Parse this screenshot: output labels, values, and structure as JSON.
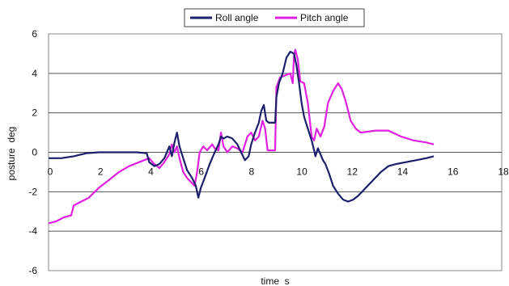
{
  "chart_data": {
    "type": "line",
    "xlabel": "time  s",
    "ylabel": "posture  deg",
    "xlim": [
      0,
      18
    ],
    "ylim": [
      -6,
      6
    ],
    "x_ticks": [
      "0",
      "2",
      "4",
      "6",
      "8",
      "10",
      "12",
      "14",
      "16",
      "18"
    ],
    "y_ticks": [
      "6",
      "4",
      "2",
      "0",
      "-2",
      "-4",
      "-6"
    ],
    "grid": "horizontal",
    "legend_position": "top",
    "colors": {
      "roll": "#1c1f6b",
      "pitch": "#e020e0"
    },
    "series": [
      {
        "name": "Roll angle",
        "points": [
          [
            0,
            -0.3
          ],
          [
            0.5,
            -0.3
          ],
          [
            1,
            -0.2
          ],
          [
            1.5,
            -0.05
          ],
          [
            2,
            0
          ],
          [
            2.5,
            0
          ],
          [
            3,
            0
          ],
          [
            3.5,
            0
          ],
          [
            3.9,
            -0.05
          ],
          [
            4.0,
            -0.5
          ],
          [
            4.2,
            -0.7
          ],
          [
            4.4,
            -0.6
          ],
          [
            4.6,
            -0.3
          ],
          [
            4.8,
            0.3
          ],
          [
            4.9,
            -0.2
          ],
          [
            5.0,
            0.5
          ],
          [
            5.1,
            1.0
          ],
          [
            5.2,
            0.3
          ],
          [
            5.35,
            -0.3
          ],
          [
            5.5,
            -0.9
          ],
          [
            5.7,
            -1.3
          ],
          [
            5.85,
            -1.7
          ],
          [
            5.95,
            -2.3
          ],
          [
            6.05,
            -1.8
          ],
          [
            6.2,
            -1.3
          ],
          [
            6.4,
            -0.6
          ],
          [
            6.6,
            0.0
          ],
          [
            6.75,
            0.4
          ],
          [
            6.85,
            0.8
          ],
          [
            6.95,
            0.7
          ],
          [
            7.1,
            0.8
          ],
          [
            7.3,
            0.7
          ],
          [
            7.5,
            0.4
          ],
          [
            7.65,
            0.0
          ],
          [
            7.8,
            -0.4
          ],
          [
            7.95,
            -0.2
          ],
          [
            8.05,
            0.4
          ],
          [
            8.2,
            1.0
          ],
          [
            8.35,
            1.5
          ],
          [
            8.45,
            2.1
          ],
          [
            8.55,
            2.4
          ],
          [
            8.65,
            1.6
          ],
          [
            8.75,
            1.5
          ],
          [
            9.0,
            1.5
          ],
          [
            9.05,
            2.8
          ],
          [
            9.15,
            3.5
          ],
          [
            9.3,
            4.0
          ],
          [
            9.45,
            4.8
          ],
          [
            9.6,
            5.1
          ],
          [
            9.75,
            5.0
          ],
          [
            9.85,
            4.4
          ],
          [
            9.95,
            3.5
          ],
          [
            10.05,
            2.5
          ],
          [
            10.15,
            1.8
          ],
          [
            10.3,
            1.2
          ],
          [
            10.45,
            0.6
          ],
          [
            10.55,
            0.1
          ],
          [
            10.6,
            -0.2
          ],
          [
            10.7,
            0.2
          ],
          [
            10.8,
            -0.1
          ],
          [
            10.9,
            -0.4
          ],
          [
            11.0,
            -0.6
          ],
          [
            11.15,
            -1.1
          ],
          [
            11.3,
            -1.7
          ],
          [
            11.5,
            -2.1
          ],
          [
            11.7,
            -2.4
          ],
          [
            11.9,
            -2.5
          ],
          [
            12.1,
            -2.4
          ],
          [
            12.3,
            -2.2
          ],
          [
            12.6,
            -1.8
          ],
          [
            12.9,
            -1.4
          ],
          [
            13.2,
            -1.0
          ],
          [
            13.5,
            -0.7
          ],
          [
            13.8,
            -0.6
          ],
          [
            14.2,
            -0.5
          ],
          [
            14.6,
            -0.4
          ],
          [
            15.0,
            -0.3
          ],
          [
            15.3,
            -0.2
          ]
        ]
      },
      {
        "name": "Pitch angle",
        "points": [
          [
            0,
            -3.6
          ],
          [
            0.3,
            -3.5
          ],
          [
            0.6,
            -3.3
          ],
          [
            0.9,
            -3.2
          ],
          [
            1.0,
            -2.7
          ],
          [
            1.3,
            -2.5
          ],
          [
            1.6,
            -2.3
          ],
          [
            2.0,
            -1.8
          ],
          [
            2.4,
            -1.4
          ],
          [
            2.8,
            -1.0
          ],
          [
            3.2,
            -0.7
          ],
          [
            3.6,
            -0.5
          ],
          [
            4.0,
            -0.3
          ],
          [
            4.2,
            -0.6
          ],
          [
            4.4,
            -0.8
          ],
          [
            4.6,
            -0.5
          ],
          [
            4.8,
            -0.1
          ],
          [
            4.9,
            0.4
          ],
          [
            5.0,
            0.0
          ],
          [
            5.1,
            0.3
          ],
          [
            5.2,
            -0.3
          ],
          [
            5.35,
            -1.0
          ],
          [
            5.5,
            -1.3
          ],
          [
            5.65,
            -1.5
          ],
          [
            5.8,
            -1.7
          ],
          [
            5.9,
            -1.0
          ],
          [
            6.0,
            0.0
          ],
          [
            6.15,
            0.3
          ],
          [
            6.3,
            0.1
          ],
          [
            6.5,
            0.4
          ],
          [
            6.6,
            0.2
          ],
          [
            6.75,
            0.1
          ],
          [
            6.85,
            1.0
          ],
          [
            6.95,
            0.3
          ],
          [
            7.1,
            0.0
          ],
          [
            7.3,
            0.3
          ],
          [
            7.5,
            0.2
          ],
          [
            7.7,
            0.0
          ],
          [
            7.9,
            0.8
          ],
          [
            8.05,
            1.0
          ],
          [
            8.2,
            0.6
          ],
          [
            8.35,
            0.8
          ],
          [
            8.5,
            1.6
          ],
          [
            8.6,
            1.2
          ],
          [
            8.7,
            0.1
          ],
          [
            9.0,
            0.1
          ],
          [
            9.05,
            3.3
          ],
          [
            9.2,
            3.8
          ],
          [
            9.4,
            3.9
          ],
          [
            9.6,
            4.0
          ],
          [
            9.7,
            3.5
          ],
          [
            9.75,
            4.9
          ],
          [
            9.8,
            5.2
          ],
          [
            9.9,
            4.7
          ],
          [
            10.0,
            3.6
          ],
          [
            10.15,
            3.5
          ],
          [
            10.3,
            2.5
          ],
          [
            10.45,
            0.8
          ],
          [
            10.55,
            0.6
          ],
          [
            10.65,
            1.2
          ],
          [
            10.8,
            0.8
          ],
          [
            10.95,
            1.3
          ],
          [
            11.1,
            2.5
          ],
          [
            11.3,
            3.1
          ],
          [
            11.5,
            3.5
          ],
          [
            11.65,
            3.2
          ],
          [
            11.8,
            2.6
          ],
          [
            12.0,
            1.6
          ],
          [
            12.2,
            1.2
          ],
          [
            12.4,
            1.0
          ],
          [
            13.0,
            1.1
          ],
          [
            13.5,
            1.1
          ],
          [
            14.0,
            0.8
          ],
          [
            14.5,
            0.6
          ],
          [
            15.0,
            0.5
          ],
          [
            15.3,
            0.4
          ]
        ]
      }
    ]
  }
}
